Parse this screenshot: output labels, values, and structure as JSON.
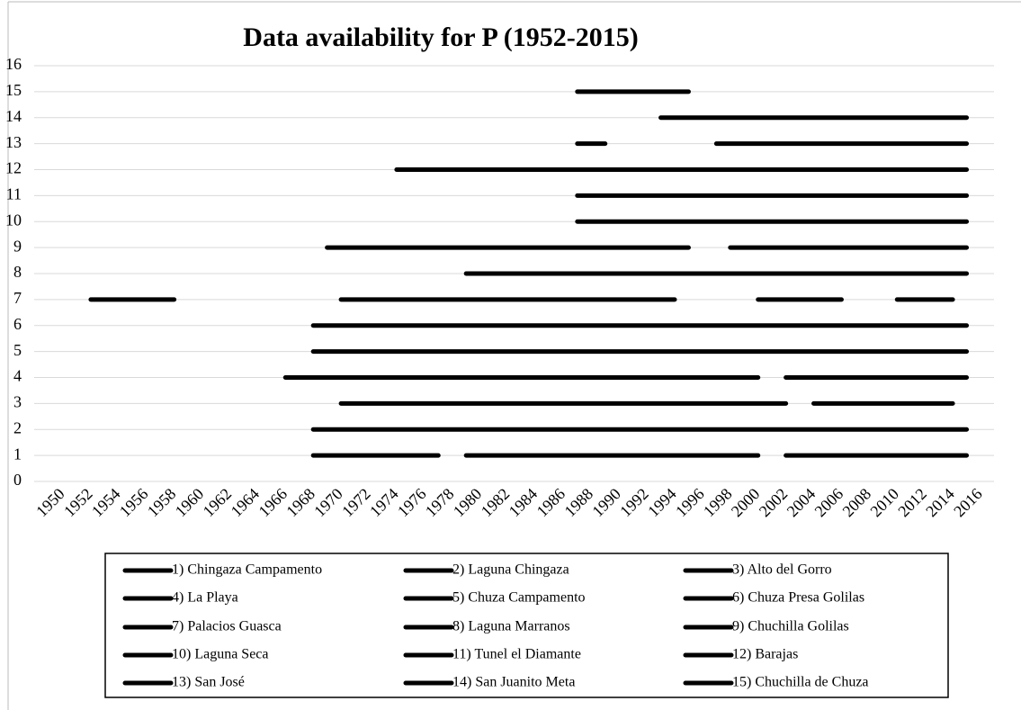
{
  "chart_data": {
    "type": "line",
    "title": "Data availability for P (1952-2015)",
    "xlim": [
      1950,
      2016
    ],
    "xticks": [
      1950,
      1952,
      1954,
      1956,
      1958,
      1960,
      1962,
      1964,
      1966,
      1968,
      1970,
      1972,
      1974,
      1976,
      1978,
      1980,
      1982,
      1984,
      1986,
      1988,
      1990,
      1992,
      1994,
      1996,
      1998,
      2000,
      2002,
      2004,
      2006,
      2008,
      2010,
      2012,
      2014,
      2016
    ],
    "ylim": [
      0,
      16
    ],
    "yticks": [
      0,
      1,
      2,
      3,
      4,
      5,
      6,
      7,
      8,
      9,
      10,
      11,
      12,
      13,
      14,
      15,
      16
    ],
    "grid": true,
    "legend": "bottom",
    "series": [
      {
        "name": "1) Chingaza Campamento",
        "color": "#000000",
        "x": [
          1968,
          1977,
          null,
          1979,
          2000,
          null,
          2002,
          2015
        ],
        "values": [
          1,
          1,
          null,
          1,
          1,
          null,
          1,
          1
        ]
      },
      {
        "name": "2) Laguna Chingaza",
        "color": "#000000",
        "x": [
          1968,
          2015
        ],
        "values": [
          2,
          2
        ]
      },
      {
        "name": "3) Alto del Gorro",
        "color": "#000000",
        "x": [
          1970,
          2002,
          null,
          2004,
          2014
        ],
        "values": [
          3,
          3,
          null,
          3,
          3
        ]
      },
      {
        "name": "4) La Playa",
        "color": "#000000",
        "x": [
          1966,
          2000,
          null,
          2002,
          2015
        ],
        "values": [
          4,
          4,
          null,
          4,
          4
        ]
      },
      {
        "name": "5) Chuza Campamento",
        "color": "#000000",
        "x": [
          1968,
          2015
        ],
        "values": [
          5,
          5
        ]
      },
      {
        "name": "6) Chuza Presa Golilas",
        "color": "#000000",
        "x": [
          1968,
          2015
        ],
        "values": [
          6,
          6
        ]
      },
      {
        "name": "7) Palacios Guasca",
        "color": "#000000",
        "x": [
          1952,
          1958,
          null,
          1970,
          1994,
          null,
          2000,
          2006,
          null,
          2010,
          2014
        ],
        "values": [
          7,
          7,
          null,
          7,
          7,
          null,
          7,
          7,
          null,
          7,
          7
        ]
      },
      {
        "name": "8) Laguna Marranos",
        "color": "#000000",
        "x": [
          1979,
          2015
        ],
        "values": [
          8,
          8
        ]
      },
      {
        "name": "9) Chuchilla Golilas",
        "color": "#000000",
        "x": [
          1969,
          1995,
          null,
          1998,
          2015
        ],
        "values": [
          9,
          9,
          null,
          9,
          9
        ]
      },
      {
        "name": "10) Laguna Seca",
        "color": "#000000",
        "x": [
          1987,
          2015
        ],
        "values": [
          10,
          10
        ]
      },
      {
        "name": "11) Tunel el Diamante",
        "color": "#000000",
        "x": [
          1987,
          2015
        ],
        "values": [
          11,
          11
        ]
      },
      {
        "name": "12) Barajas",
        "color": "#000000",
        "x": [
          1974,
          2015
        ],
        "values": [
          12,
          12
        ]
      },
      {
        "name": "13) San José",
        "color": "#000000",
        "x": [
          1987,
          1989,
          null,
          1997,
          2015
        ],
        "values": [
          13,
          13,
          null,
          13,
          13
        ]
      },
      {
        "name": "14) San Juanito Meta",
        "color": "#000000",
        "x": [
          1993,
          2015
        ],
        "values": [
          14,
          14
        ]
      },
      {
        "name": "15) Chuchilla de Chuza",
        "color": "#000000",
        "x": [
          1987,
          1995
        ],
        "values": [
          15,
          15
        ]
      }
    ]
  }
}
